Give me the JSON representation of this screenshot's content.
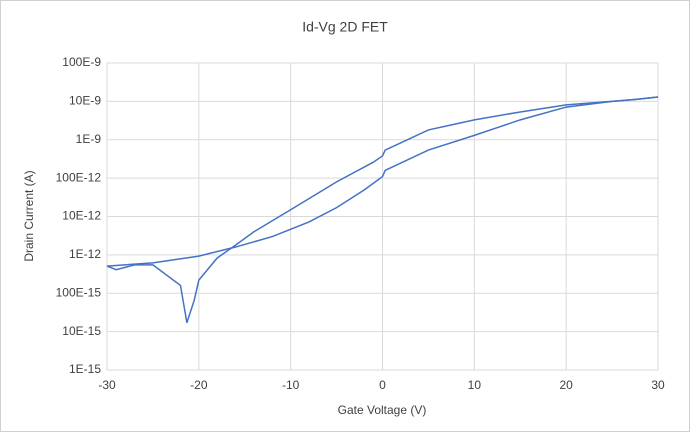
{
  "chart_data": {
    "type": "line",
    "title": "Id-Vg 2D FET",
    "x_label": "Gate Voltage (V)",
    "y_label": "Drain Current (A)",
    "series": [
      {
        "color": "#4472c4",
        "x": [
          -30,
          -29,
          -27,
          -25,
          -22,
          -21.3,
          -20.5,
          -20,
          -18,
          -16,
          -14,
          -10,
          -5,
          -1,
          0,
          0.3,
          5,
          10,
          15,
          20,
          25,
          28,
          30
        ],
        "values": [
          5.1e-13,
          4.1e-13,
          5.5e-13,
          5.5e-13,
          1.6e-13,
          1.7e-14,
          6.6e-14,
          2.2e-13,
          8.3e-13,
          1.8e-12,
          4e-12,
          1.5e-11,
          8e-11,
          2.6e-10,
          3.8e-10,
          5.4e-10,
          1.8e-09,
          3.3e-09,
          5.3e-09,
          8.1e-09,
          1e-08,
          1.15e-08,
          1.3e-08
        ]
      },
      {
        "color": "#4472c4",
        "x": [
          -30,
          -25,
          -20,
          -16,
          -12,
          -8,
          -5,
          -2,
          0,
          0.3,
          5,
          10,
          15,
          20,
          25,
          28,
          30
        ],
        "values": [
          5.1e-13,
          6.2e-13,
          9.3e-13,
          1.6e-12,
          3e-12,
          7.2e-12,
          1.7e-11,
          4.9e-11,
          1.1e-10,
          1.6e-10,
          5.4e-10,
          1.3e-09,
          3.3e-09,
          7.1e-09,
          1e-08,
          1.15e-08,
          1.3e-08
        ]
      }
    ],
    "xlim": [
      -30,
      30
    ],
    "xticks": [
      -30,
      -20,
      -10,
      0,
      10,
      20,
      30
    ],
    "ylim": [
      1e-15,
      1e-07
    ],
    "log_y": true,
    "yticks": [
      {
        "value": 1e-15,
        "label": "1E-15"
      },
      {
        "value": 1e-14,
        "label": "10E-15"
      },
      {
        "value": 1e-13,
        "label": "100E-15"
      },
      {
        "value": 1e-12,
        "label": "1E-12"
      },
      {
        "value": 1e-11,
        "label": "10E-12"
      },
      {
        "value": 1e-10,
        "label": "100E-12"
      },
      {
        "value": 1e-09,
        "label": "1E-9"
      },
      {
        "value": 1e-08,
        "label": "10E-9"
      },
      {
        "value": 1e-07,
        "label": "100E-9"
      }
    ],
    "grid": true
  }
}
